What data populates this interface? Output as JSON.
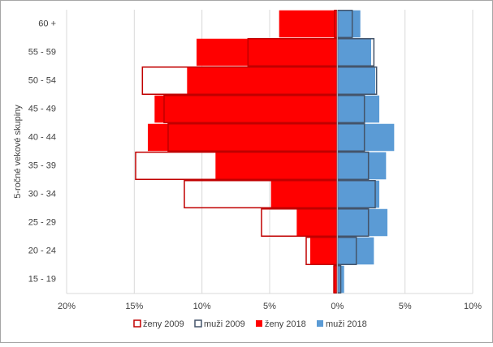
{
  "chart_data": {
    "type": "bar",
    "orientation": "horizontal",
    "y_label": "5-ročné vekové skupiny",
    "categories": [
      "15 - 19",
      "20 - 24",
      "25 - 29",
      "30 - 34",
      "35 - 39",
      "40 - 44",
      "45 - 49",
      "50 - 54",
      "55 - 59",
      "60 +"
    ],
    "series": [
      {
        "name": "ženy 2018",
        "color": "#ff0000",
        "outline": false,
        "values": [
          -0.3,
          -2.0,
          -3.0,
          -4.9,
          -9.0,
          -14.0,
          -13.5,
          -11.1,
          -10.4,
          -4.3
        ]
      },
      {
        "name": "muži 2018",
        "color": "#5b9bd5",
        "outline": false,
        "values": [
          0.5,
          2.7,
          3.7,
          3.1,
          3.6,
          4.2,
          3.1,
          2.8,
          2.5,
          1.7
        ]
      },
      {
        "name": "ženy 2009",
        "color": "#c00000",
        "outline": true,
        "values": [
          -0.25,
          -2.3,
          -5.6,
          -11.3,
          -14.9,
          -12.5,
          -12.8,
          -14.4,
          -6.6,
          -0.2
        ]
      },
      {
        "name": "muži 2009",
        "color": "#44546a",
        "outline": true,
        "values": [
          0.25,
          1.4,
          2.3,
          2.8,
          2.3,
          2.0,
          2.0,
          2.9,
          2.7,
          1.1
        ]
      }
    ],
    "legend_order": [
      2,
      3,
      0,
      1
    ],
    "xlim": [
      -20,
      10
    ],
    "xticks": [
      {
        "value": -20,
        "label": "20%"
      },
      {
        "value": -15,
        "label": "15%"
      },
      {
        "value": -10,
        "label": "10%"
      },
      {
        "value": -5,
        "label": "5%"
      },
      {
        "value": 0,
        "label": "0%"
      },
      {
        "value": 5,
        "label": "5%"
      },
      {
        "value": 10,
        "label": "10%"
      }
    ],
    "grid": true
  }
}
